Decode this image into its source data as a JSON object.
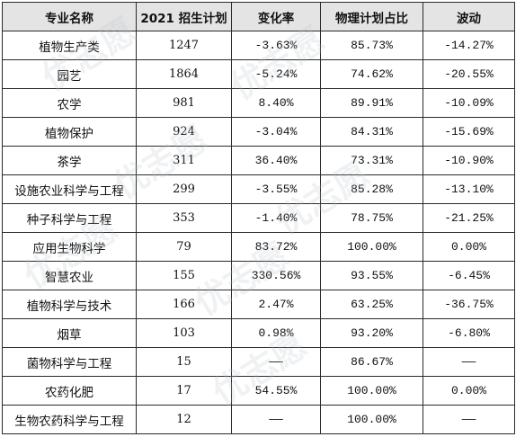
{
  "table": {
    "headers": [
      "专业名称",
      "2021 招生计划",
      "变化率",
      "物理计划占比",
      "波动"
    ],
    "rows": [
      [
        "植物生产类",
        "1247",
        "-3.63%",
        "85.73%",
        "-14.27%"
      ],
      [
        "园艺",
        "1864",
        "-5.24%",
        "74.62%",
        "-20.55%"
      ],
      [
        "农学",
        "981",
        "8.40%",
        "89.91%",
        "-10.09%"
      ],
      [
        "植物保护",
        "924",
        "-3.04%",
        "84.31%",
        "-15.69%"
      ],
      [
        "茶学",
        "311",
        "36.40%",
        "73.31%",
        "-10.90%"
      ],
      [
        "设施农业科学与工程",
        "299",
        "-3.55%",
        "85.28%",
        "-13.10%"
      ],
      [
        "种子科学与工程",
        "353",
        "-1.40%",
        "78.75%",
        "-21.25%"
      ],
      [
        "应用生物科学",
        "79",
        "83.72%",
        "100.00%",
        "0.00%"
      ],
      [
        "智慧农业",
        "155",
        "330.56%",
        "93.55%",
        "-6.45%"
      ],
      [
        "植物科学与技术",
        "166",
        "2.47%",
        "63.25%",
        "-36.75%"
      ],
      [
        "烟草",
        "103",
        "0.98%",
        "93.20%",
        "-6.80%"
      ],
      [
        "菌物科学与工程",
        "15",
        "——",
        "86.67%",
        "——"
      ],
      [
        "农药化肥",
        "17",
        "54.55%",
        "100.00%",
        "0.00%"
      ],
      [
        "生物农药科学与工程",
        "12",
        "——",
        "100.00%",
        "——"
      ]
    ]
  },
  "watermark": {
    "text": "优志愿",
    "color": "#b4bec8"
  }
}
